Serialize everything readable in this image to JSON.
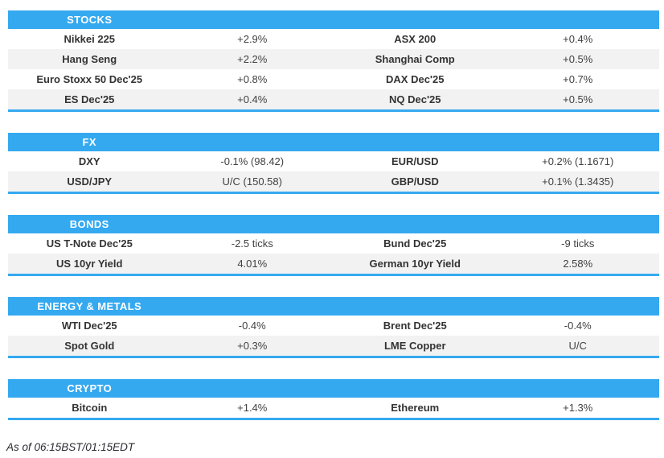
{
  "colors": {
    "accent_blue": "#35a9f0",
    "stripe_gray": "#f2f2f2",
    "header_text": "#ffffff",
    "label_text": "#333333",
    "value_text": "#414141"
  },
  "footer": {
    "note": "As of 06:15BST/01:15EDT"
  },
  "sections": [
    {
      "title": "STOCKS",
      "rows": [
        {
          "pairs": [
            {
              "label": "Nikkei 225",
              "value": "+2.9%"
            },
            {
              "label": "ASX 200",
              "value": "+0.4%"
            }
          ]
        },
        {
          "pairs": [
            {
              "label": "Hang Seng",
              "value": "+2.2%"
            },
            {
              "label": "Shanghai Comp",
              "value": "+0.5%"
            }
          ]
        },
        {
          "pairs": [
            {
              "label": "Euro Stoxx 50 Dec'25",
              "value": "+0.8%"
            },
            {
              "label": "DAX Dec'25",
              "value": "+0.7%"
            }
          ]
        },
        {
          "pairs": [
            {
              "label": "ES Dec'25",
              "value": "+0.4%"
            },
            {
              "label": "NQ Dec'25",
              "value": "+0.5%"
            }
          ]
        }
      ]
    },
    {
      "title": "FX",
      "rows": [
        {
          "pairs": [
            {
              "label": "DXY",
              "value": "-0.1% (98.42)"
            },
            {
              "label": "EUR/USD",
              "value": "+0.2% (1.1671)"
            }
          ]
        },
        {
          "pairs": [
            {
              "label": "USD/JPY",
              "value": "U/C (150.58)"
            },
            {
              "label": "GBP/USD",
              "value": "+0.1% (1.3435)"
            }
          ]
        }
      ]
    },
    {
      "title": "BONDS",
      "rows": [
        {
          "pairs": [
            {
              "label": "US T-Note Dec'25",
              "value": "-2.5 ticks"
            },
            {
              "label": "Bund Dec'25",
              "value": "-9 ticks"
            }
          ]
        },
        {
          "pairs": [
            {
              "label": "US 10yr Yield",
              "value": "4.01%"
            },
            {
              "label": "German 10yr Yield",
              "value": "2.58%"
            }
          ]
        }
      ]
    },
    {
      "title": "ENERGY & METALS",
      "rows": [
        {
          "pairs": [
            {
              "label": "WTI Dec'25",
              "value": "-0.4%"
            },
            {
              "label": "Brent Dec'25",
              "value": "-0.4%"
            }
          ]
        },
        {
          "pairs": [
            {
              "label": "Spot Gold",
              "value": "+0.3%"
            },
            {
              "label": "LME Copper",
              "value": "U/C"
            }
          ]
        }
      ]
    },
    {
      "title": "CRYPTO",
      "rows": [
        {
          "pairs": [
            {
              "label": "Bitcoin",
              "value": "+1.4%"
            },
            {
              "label": "Ethereum",
              "value": "+1.3%"
            }
          ]
        }
      ]
    }
  ]
}
